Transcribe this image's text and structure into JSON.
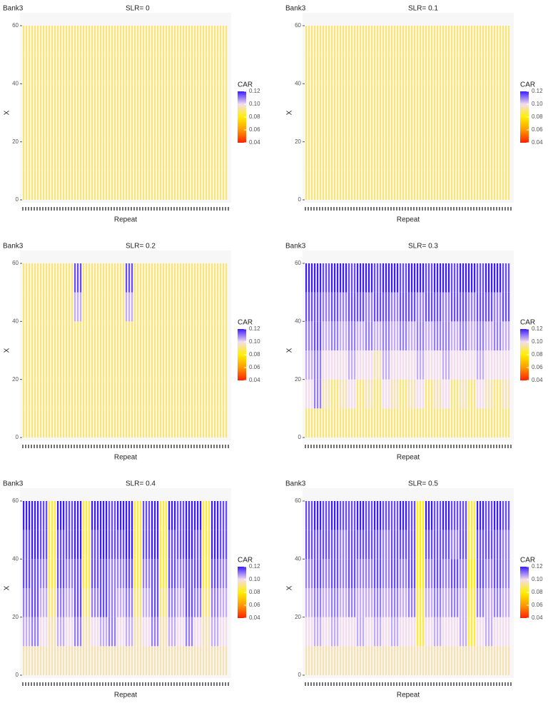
{
  "chart_data": [
    {
      "type": "heatmap",
      "title": "Bank3",
      "subtitle": "SLR= 0",
      "xlabel": "Repeat",
      "ylabel": "X",
      "ylim": [
        0,
        60
      ],
      "yticks": [
        0,
        20,
        40,
        60
      ],
      "ybins": [
        0,
        10,
        20,
        30,
        40,
        50,
        60
      ],
      "legend_title": "CAR",
      "clim": [
        0.04,
        0.12
      ],
      "cticks": [
        0.04,
        0.06,
        0.08,
        {
          "value": 0.1,
          "label": "0.10"
        },
        0.12
      ],
      "colors": [
        "#ff2000",
        "#ff9a00",
        "#ffef00",
        "#f3dcee",
        "#3a1cff"
      ],
      "z": [
        [
          0.09,
          0.09,
          0.09,
          0.09,
          0.09,
          0.09,
          0.09,
          0.09,
          0.09,
          0.09,
          0.09,
          0.09,
          0.09,
          0.09,
          0.09,
          0.09,
          0.09,
          0.09,
          0.09,
          0.09,
          0.09,
          0.09,
          0.09,
          0.09
        ],
        [
          0.09,
          0.09,
          0.09,
          0.09,
          0.09,
          0.09,
          0.09,
          0.09,
          0.09,
          0.09,
          0.09,
          0.09,
          0.09,
          0.09,
          0.09,
          0.09,
          0.09,
          0.09,
          0.09,
          0.09,
          0.09,
          0.09,
          0.09,
          0.09
        ],
        [
          0.09,
          0.09,
          0.09,
          0.09,
          0.09,
          0.09,
          0.09,
          0.09,
          0.09,
          0.09,
          0.09,
          0.09,
          0.09,
          0.09,
          0.09,
          0.09,
          0.09,
          0.09,
          0.09,
          0.09,
          0.09,
          0.09,
          0.09,
          0.09
        ],
        [
          0.09,
          0.09,
          0.09,
          0.09,
          0.09,
          0.09,
          0.09,
          0.09,
          0.09,
          0.09,
          0.09,
          0.09,
          0.09,
          0.09,
          0.09,
          0.09,
          0.09,
          0.09,
          0.09,
          0.09,
          0.09,
          0.09,
          0.09,
          0.09
        ],
        [
          0.09,
          0.09,
          0.09,
          0.09,
          0.09,
          0.09,
          0.09,
          0.09,
          0.09,
          0.09,
          0.09,
          0.09,
          0.09,
          0.09,
          0.09,
          0.09,
          0.09,
          0.09,
          0.09,
          0.09,
          0.09,
          0.09,
          0.09,
          0.09
        ],
        [
          0.09,
          0.09,
          0.09,
          0.09,
          0.09,
          0.09,
          0.09,
          0.09,
          0.09,
          0.09,
          0.09,
          0.09,
          0.09,
          0.09,
          0.09,
          0.09,
          0.09,
          0.09,
          0.09,
          0.09,
          0.09,
          0.09,
          0.09,
          0.09
        ]
      ]
    },
    {
      "type": "heatmap",
      "title": "Bank3",
      "subtitle": "SLR= 0.1",
      "xlabel": "Repeat",
      "ylabel": "X",
      "ylim": [
        0,
        60
      ],
      "yticks": [
        0,
        20,
        40,
        60
      ],
      "ybins": [
        0,
        10,
        20,
        30,
        40,
        50,
        60
      ],
      "legend_title": "CAR",
      "clim": [
        0.04,
        0.12
      ],
      "cticks": [
        0.04,
        0.06,
        0.08,
        {
          "value": 0.1,
          "label": "0.10"
        },
        0.12
      ],
      "colors": [
        "#ff2000",
        "#ff9a00",
        "#ffef00",
        "#f3dcee",
        "#3a1cff"
      ],
      "z": [
        [
          0.09,
          0.09,
          0.09,
          0.09,
          0.09,
          0.09,
          0.09,
          0.09,
          0.09,
          0.09,
          0.09,
          0.09,
          0.09,
          0.09,
          0.09,
          0.09,
          0.09,
          0.09,
          0.09,
          0.09,
          0.09,
          0.09,
          0.09,
          0.09
        ],
        [
          0.09,
          0.09,
          0.09,
          0.09,
          0.09,
          0.09,
          0.09,
          0.09,
          0.09,
          0.09,
          0.09,
          0.09,
          0.09,
          0.09,
          0.09,
          0.09,
          0.09,
          0.09,
          0.09,
          0.09,
          0.09,
          0.09,
          0.09,
          0.09
        ],
        [
          0.09,
          0.09,
          0.09,
          0.09,
          0.09,
          0.09,
          0.09,
          0.09,
          0.09,
          0.09,
          0.09,
          0.09,
          0.09,
          0.09,
          0.09,
          0.09,
          0.09,
          0.09,
          0.09,
          0.09,
          0.09,
          0.09,
          0.09,
          0.09
        ],
        [
          0.09,
          0.09,
          0.09,
          0.09,
          0.09,
          0.09,
          0.09,
          0.09,
          0.09,
          0.09,
          0.09,
          0.09,
          0.09,
          0.09,
          0.09,
          0.09,
          0.09,
          0.09,
          0.09,
          0.09,
          0.09,
          0.09,
          0.09,
          0.09
        ],
        [
          0.09,
          0.09,
          0.09,
          0.09,
          0.09,
          0.09,
          0.09,
          0.09,
          0.09,
          0.09,
          0.09,
          0.09,
          0.09,
          0.09,
          0.09,
          0.09,
          0.09,
          0.09,
          0.09,
          0.09,
          0.09,
          0.09,
          0.09,
          0.09
        ],
        [
          0.09,
          0.09,
          0.09,
          0.09,
          0.09,
          0.09,
          0.09,
          0.09,
          0.09,
          0.09,
          0.09,
          0.09,
          0.09,
          0.09,
          0.09,
          0.09,
          0.09,
          0.09,
          0.09,
          0.09,
          0.09,
          0.09,
          0.09,
          0.09
        ]
      ]
    },
    {
      "type": "heatmap",
      "title": "Bank3",
      "subtitle": "SLR= 0.2",
      "xlabel": "Repeat",
      "ylabel": "X",
      "ylim": [
        0,
        60
      ],
      "yticks": [
        0,
        20,
        40,
        60
      ],
      "ybins": [
        0,
        10,
        20,
        30,
        40,
        50,
        60
      ],
      "legend_title": "CAR",
      "clim": [
        0.04,
        0.12
      ],
      "cticks": [
        0.04,
        0.06,
        0.08,
        {
          "value": 0.1,
          "label": "0.10"
        },
        0.12
      ],
      "colors": [
        "#ff2000",
        "#ff9a00",
        "#ffef00",
        "#f3dcee",
        "#3a1cff"
      ],
      "z": [
        [
          0.09,
          0.09,
          0.09,
          0.09,
          0.09,
          0.09,
          0.09,
          0.09,
          0.09,
          0.09,
          0.09,
          0.09,
          0.09,
          0.09,
          0.09,
          0.09,
          0.09,
          0.09,
          0.09,
          0.09,
          0.09,
          0.09,
          0.09,
          0.09
        ],
        [
          0.09,
          0.09,
          0.09,
          0.09,
          0.09,
          0.09,
          0.09,
          0.09,
          0.09,
          0.09,
          0.09,
          0.09,
          0.09,
          0.09,
          0.09,
          0.09,
          0.09,
          0.09,
          0.09,
          0.09,
          0.09,
          0.09,
          0.09,
          0.09
        ],
        [
          0.09,
          0.09,
          0.09,
          0.09,
          0.09,
          0.09,
          0.09,
          0.09,
          0.09,
          0.09,
          0.09,
          0.09,
          0.09,
          0.09,
          0.09,
          0.09,
          0.09,
          0.09,
          0.09,
          0.09,
          0.09,
          0.09,
          0.09,
          0.09
        ],
        [
          0.09,
          0.09,
          0.09,
          0.09,
          0.09,
          0.09,
          0.09,
          0.09,
          0.09,
          0.09,
          0.09,
          0.09,
          0.09,
          0.09,
          0.09,
          0.09,
          0.09,
          0.09,
          0.09,
          0.09,
          0.09,
          0.09,
          0.09,
          0.09
        ],
        [
          0.09,
          0.09,
          0.09,
          0.09,
          0.09,
          0.09,
          0.105,
          0.09,
          0.09,
          0.09,
          0.09,
          0.09,
          0.105,
          0.09,
          0.09,
          0.09,
          0.09,
          0.09,
          0.09,
          0.09,
          0.09,
          0.09,
          0.09,
          0.09
        ],
        [
          0.09,
          0.09,
          0.09,
          0.09,
          0.09,
          0.09,
          0.115,
          0.09,
          0.09,
          0.09,
          0.09,
          0.09,
          0.115,
          0.09,
          0.09,
          0.09,
          0.09,
          0.09,
          0.09,
          0.09,
          0.09,
          0.09,
          0.09,
          0.09
        ]
      ]
    },
    {
      "type": "heatmap",
      "title": "Bank3",
      "subtitle": "SLR= 0.3",
      "xlabel": "Repeat",
      "ylabel": "X",
      "ylim": [
        0,
        60
      ],
      "yticks": [
        0,
        20,
        40,
        60
      ],
      "ybins": [
        0,
        10,
        20,
        30,
        40,
        50,
        60
      ],
      "legend_title": "CAR",
      "clim": [
        0.04,
        0.12
      ],
      "cticks": [
        0.04,
        0.06,
        0.08,
        {
          "value": 0.1,
          "label": "0.10"
        },
        0.12
      ],
      "colors": [
        "#ff2000",
        "#ff9a00",
        "#ffef00",
        "#f3dcee",
        "#3a1cff"
      ],
      "z": [
        [
          0.09,
          0.09,
          0.09,
          0.09,
          0.09,
          0.09,
          0.09,
          0.09,
          0.09,
          0.09,
          0.09,
          0.09,
          0.09,
          0.09,
          0.09,
          0.09,
          0.09,
          0.09,
          0.09,
          0.09,
          0.09,
          0.09,
          0.09,
          0.09
        ],
        [
          0.1,
          0.11,
          0.095,
          0.09,
          0.095,
          0.1,
          0.09,
          0.095,
          0.09,
          0.1,
          0.095,
          0.09,
          0.095,
          0.1,
          0.09,
          0.095,
          0.1,
          0.09,
          0.095,
          0.09,
          0.1,
          0.095,
          0.09,
          0.095
        ],
        [
          0.105,
          0.11,
          0.1,
          0.1,
          0.1,
          0.105,
          0.1,
          0.1,
          0.095,
          0.105,
          0.1,
          0.1,
          0.1,
          0.105,
          0.1,
          0.1,
          0.105,
          0.1,
          0.1,
          0.1,
          0.105,
          0.1,
          0.1,
          0.1
        ],
        [
          0.11,
          0.115,
          0.105,
          0.11,
          0.105,
          0.11,
          0.105,
          0.11,
          0.105,
          0.11,
          0.105,
          0.11,
          0.105,
          0.11,
          0.105,
          0.11,
          0.11,
          0.105,
          0.11,
          0.105,
          0.11,
          0.105,
          0.11,
          0.105
        ],
        [
          0.115,
          0.115,
          0.11,
          0.115,
          0.11,
          0.115,
          0.115,
          0.11,
          0.115,
          0.115,
          0.11,
          0.115,
          0.115,
          0.11,
          0.115,
          0.115,
          0.11,
          0.115,
          0.115,
          0.11,
          0.115,
          0.115,
          0.11,
          0.115
        ],
        [
          0.12,
          0.12,
          0.115,
          0.12,
          0.12,
          0.115,
          0.12,
          0.12,
          0.115,
          0.12,
          0.12,
          0.115,
          0.12,
          0.12,
          0.115,
          0.12,
          0.12,
          0.115,
          0.12,
          0.12,
          0.115,
          0.12,
          0.12,
          0.115
        ]
      ]
    },
    {
      "type": "heatmap",
      "title": "Bank3",
      "subtitle": "SLR= 0.4",
      "xlabel": "Repeat",
      "ylabel": "X",
      "ylim": [
        0,
        60
      ],
      "yticks": [
        0,
        20,
        40,
        60
      ],
      "ybins": [
        0,
        10,
        20,
        30,
        40,
        50,
        60
      ],
      "legend_title": "CAR",
      "clim": [
        0.04,
        0.12
      ],
      "cticks": [
        0.04,
        0.06,
        0.08,
        {
          "value": 0.1,
          "label": "0.10"
        },
        0.12
      ],
      "colors": [
        "#ff2000",
        "#ff9a00",
        "#ffef00",
        "#f3dcee",
        "#3a1cff"
      ],
      "z": [
        [
          0.095,
          0.095,
          0.095,
          0.095,
          0.095,
          0.095,
          0.095,
          0.095,
          0.095,
          0.095,
          0.095,
          0.095,
          0.095,
          0.095,
          0.095,
          0.095,
          0.095,
          0.095,
          0.095,
          0.095,
          0.095,
          0.095,
          0.095,
          0.095
        ],
        [
          0.105,
          0.11,
          0.1,
          0.095,
          0.105,
          0.1,
          0.11,
          0.095,
          0.1,
          0.105,
          0.11,
          0.1,
          0.105,
          0.095,
          0.1,
          0.11,
          0.095,
          0.105,
          0.1,
          0.11,
          0.1,
          0.095,
          0.105,
          0.1
        ],
        [
          0.11,
          0.115,
          0.105,
          0.09,
          0.11,
          0.105,
          0.115,
          0.09,
          0.11,
          0.115,
          0.11,
          0.105,
          0.11,
          0.09,
          0.105,
          0.115,
          0.09,
          0.11,
          0.105,
          0.115,
          0.11,
          0.09,
          0.11,
          0.105
        ],
        [
          0.115,
          0.115,
          0.11,
          0.085,
          0.115,
          0.11,
          0.115,
          0.085,
          0.115,
          0.115,
          0.11,
          0.11,
          0.115,
          0.085,
          0.11,
          0.115,
          0.085,
          0.115,
          0.11,
          0.115,
          0.115,
          0.085,
          0.115,
          0.11
        ],
        [
          0.115,
          0.12,
          0.115,
          0.085,
          0.115,
          0.115,
          0.12,
          0.085,
          0.115,
          0.12,
          0.115,
          0.115,
          0.12,
          0.085,
          0.115,
          0.12,
          0.085,
          0.115,
          0.115,
          0.12,
          0.115,
          0.085,
          0.12,
          0.115
        ],
        [
          0.12,
          0.12,
          0.115,
          0.085,
          0.12,
          0.115,
          0.12,
          0.085,
          0.12,
          0.12,
          0.115,
          0.12,
          0.12,
          0.085,
          0.115,
          0.12,
          0.085,
          0.12,
          0.115,
          0.12,
          0.12,
          0.085,
          0.12,
          0.115
        ]
      ]
    },
    {
      "type": "heatmap",
      "title": "Bank3",
      "subtitle": "SLR= 0.5",
      "xlabel": "Repeat",
      "ylabel": "X",
      "ylim": [
        0,
        60
      ],
      "yticks": [
        0,
        20,
        40,
        60
      ],
      "ybins": [
        0,
        10,
        20,
        30,
        40,
        50,
        60
      ],
      "legend_title": "CAR",
      "clim": [
        0.04,
        0.12
      ],
      "cticks": [
        0.04,
        0.06,
        0.08,
        {
          "value": 0.1,
          "label": "0.10"
        },
        0.12
      ],
      "colors": [
        "#ff2000",
        "#ff9a00",
        "#ffef00",
        "#f3dcee",
        "#3a1cff"
      ],
      "z": [
        [
          0.095,
          0.095,
          0.095,
          0.095,
          0.095,
          0.095,
          0.095,
          0.095,
          0.095,
          0.095,
          0.095,
          0.095,
          0.095,
          0.095,
          0.095,
          0.095,
          0.095,
          0.095,
          0.095,
          0.095,
          0.095,
          0.095,
          0.095,
          0.095
        ],
        [
          0.1,
          0.105,
          0.1,
          0.105,
          0.1,
          0.1,
          0.105,
          0.1,
          0.105,
          0.1,
          0.105,
          0.1,
          0.1,
          0.085,
          0.1,
          0.105,
          0.1,
          0.1,
          0.105,
          0.085,
          0.1,
          0.105,
          0.1,
          0.1
        ],
        [
          0.105,
          0.11,
          0.105,
          0.11,
          0.105,
          0.11,
          0.105,
          0.105,
          0.11,
          0.105,
          0.11,
          0.105,
          0.11,
          0.085,
          0.105,
          0.11,
          0.105,
          0.11,
          0.105,
          0.085,
          0.11,
          0.105,
          0.11,
          0.105
        ],
        [
          0.11,
          0.115,
          0.11,
          0.115,
          0.11,
          0.115,
          0.11,
          0.11,
          0.115,
          0.11,
          0.115,
          0.11,
          0.115,
          0.08,
          0.11,
          0.115,
          0.11,
          0.115,
          0.11,
          0.08,
          0.115,
          0.11,
          0.115,
          0.11
        ],
        [
          0.115,
          0.115,
          0.115,
          0.115,
          0.11,
          0.115,
          0.115,
          0.115,
          0.115,
          0.11,
          0.115,
          0.115,
          0.115,
          0.08,
          0.115,
          0.115,
          0.115,
          0.11,
          0.115,
          0.085,
          0.115,
          0.115,
          0.115,
          0.11
        ],
        [
          0.115,
          0.12,
          0.115,
          0.12,
          0.115,
          0.115,
          0.12,
          0.115,
          0.12,
          0.115,
          0.115,
          0.12,
          0.115,
          0.08,
          0.12,
          0.115,
          0.12,
          0.115,
          0.115,
          0.085,
          0.12,
          0.115,
          0.12,
          0.115
        ]
      ]
    }
  ]
}
